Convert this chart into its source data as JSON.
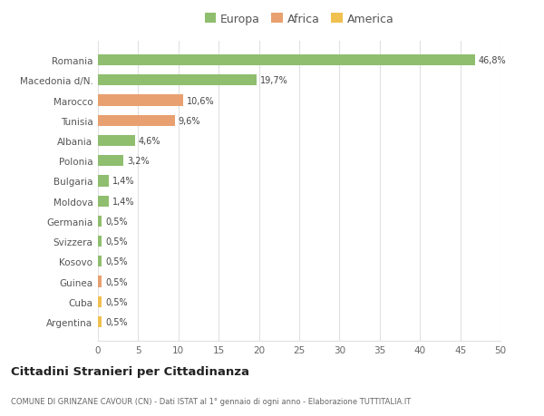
{
  "categories": [
    "Argentina",
    "Cuba",
    "Guinea",
    "Kosovo",
    "Svizzera",
    "Germania",
    "Moldova",
    "Bulgaria",
    "Polonia",
    "Albania",
    "Tunisia",
    "Marocco",
    "Macedonia d/N.",
    "Romania"
  ],
  "values": [
    0.5,
    0.5,
    0.5,
    0.5,
    0.5,
    0.5,
    1.4,
    1.4,
    3.2,
    4.6,
    9.6,
    10.6,
    19.7,
    46.8
  ],
  "labels": [
    "0,5%",
    "0,5%",
    "0,5%",
    "0,5%",
    "0,5%",
    "0,5%",
    "1,4%",
    "1,4%",
    "3,2%",
    "4,6%",
    "9,6%",
    "10,6%",
    "19,7%",
    "46,8%"
  ],
  "colors": [
    "#f0c050",
    "#f0c050",
    "#e8a070",
    "#8fbe6e",
    "#8fbe6e",
    "#8fbe6e",
    "#8fbe6e",
    "#8fbe6e",
    "#8fbe6e",
    "#8fbe6e",
    "#e8a070",
    "#e8a070",
    "#8fbe6e",
    "#8fbe6e"
  ],
  "legend_labels": [
    "Europa",
    "Africa",
    "America"
  ],
  "legend_colors": [
    "#8fbe6e",
    "#e8a070",
    "#f0c050"
  ],
  "title": "Cittadini Stranieri per Cittadinanza",
  "subtitle": "COMUNE DI GRINZANE CAVOUR (CN) - Dati ISTAT al 1° gennaio di ogni anno - Elaborazione TUTTITALIA.IT",
  "xlim": [
    0,
    50
  ],
  "xticks": [
    0,
    5,
    10,
    15,
    20,
    25,
    30,
    35,
    40,
    45,
    50
  ],
  "bg_color": "#ffffff",
  "grid_color": "#e0e0e0"
}
